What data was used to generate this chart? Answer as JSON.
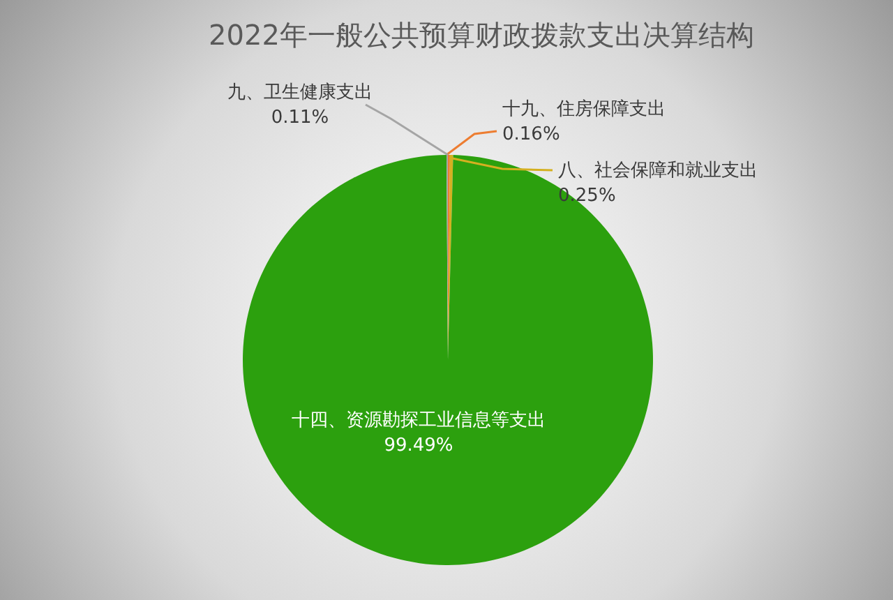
{
  "chart_data": {
    "type": "pie",
    "title": "2022年一般公共预算财政拨款支出决算结构",
    "categories": [
      "十九、住房保障支出",
      "八、社会保障和就业支出",
      "十四、资源勘探工业信息等支出",
      "九、卫生健康支出"
    ],
    "values": [
      0.16,
      0.25,
      99.49,
      0.11
    ],
    "colors": [
      "#ed7d31",
      "#d4b020",
      "#2ca00e",
      "#a5a5a5"
    ],
    "value_labels": [
      "0.16%",
      "0.25%",
      "99.49%",
      "0.11%"
    ]
  }
}
